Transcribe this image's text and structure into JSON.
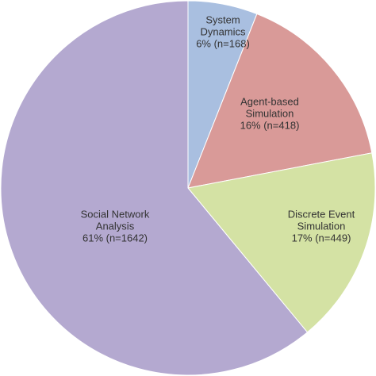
{
  "chart_data": {
    "type": "pie",
    "categories": [
      "System Dynamics",
      "Agent-based Simulation",
      "Discrete Event Simulation",
      "Social Network Analysis"
    ],
    "values": [
      6,
      16,
      17,
      61
    ],
    "value_labels": [
      "6% (n=168)",
      "16% (n=418)",
      "17% (n=449)",
      "61% (n=1642)"
    ],
    "colors": [
      "#a9bfe0",
      "#d99a98",
      "#d4e2a4",
      "#b4a9d0"
    ]
  }
}
